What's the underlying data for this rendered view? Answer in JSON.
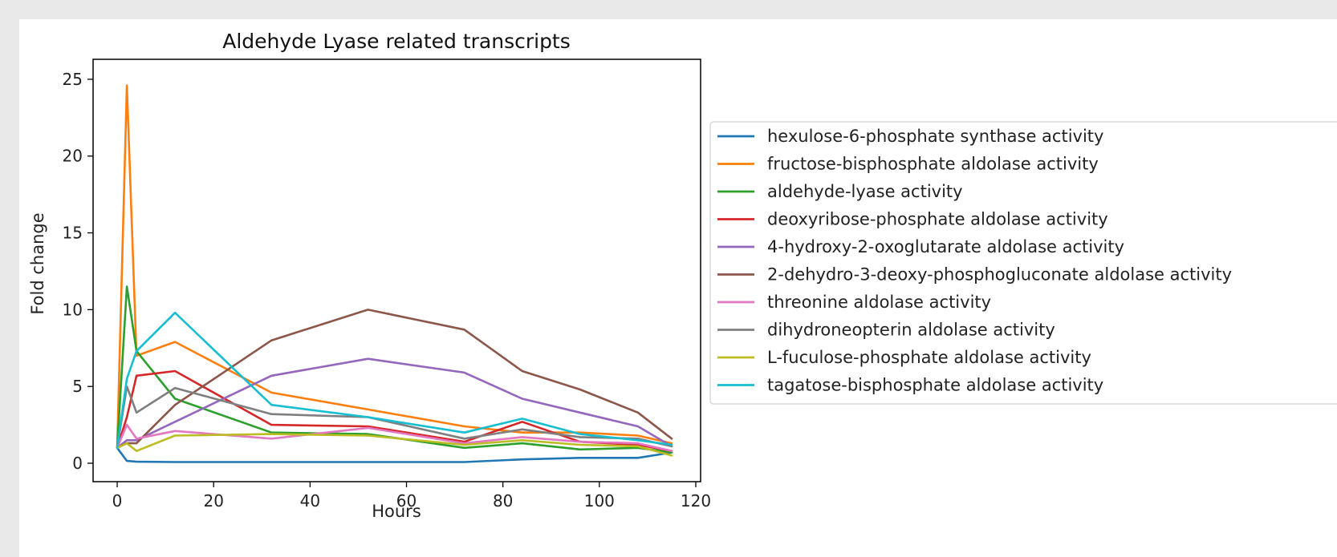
{
  "chart_data": {
    "type": "line",
    "title": "Aldehyde Lyase related transcripts",
    "xlabel": "Hours",
    "ylabel": "Fold change",
    "xlim": [
      -5,
      121
    ],
    "ylim": [
      -1.2,
      26.3
    ],
    "xticks": [
      0,
      20,
      40,
      60,
      80,
      100,
      120
    ],
    "yticks": [
      0,
      5,
      10,
      15,
      20,
      25
    ],
    "grid": false,
    "legend_position": "outside-right",
    "x": [
      0,
      2,
      4,
      12,
      32,
      52,
      72,
      84,
      96,
      108,
      115
    ],
    "series": [
      {
        "name": "hexulose-6-phosphate synthase activity",
        "color": "#1f77b4",
        "values": [
          1.0,
          0.15,
          0.1,
          0.08,
          0.08,
          0.08,
          0.08,
          0.25,
          0.35,
          0.35,
          0.7
        ]
      },
      {
        "name": "fructose-bisphosphate aldolase activity",
        "color": "#ff7f0e",
        "values": [
          1.0,
          24.6,
          7.0,
          7.9,
          4.6,
          3.5,
          2.4,
          2.0,
          2.0,
          1.8,
          1.3
        ]
      },
      {
        "name": "aldehyde-lyase activity",
        "color": "#2ca02c",
        "values": [
          1.0,
          11.5,
          7.3,
          4.2,
          2.0,
          1.9,
          1.0,
          1.3,
          0.9,
          1.0,
          0.7
        ]
      },
      {
        "name": "deoxyribose-phosphate aldolase activity",
        "color": "#d62728",
        "values": [
          1.0,
          3.0,
          5.7,
          6.0,
          2.5,
          2.4,
          1.4,
          2.7,
          1.4,
          1.2,
          0.8
        ]
      },
      {
        "name": "4-hydroxy-2-oxoglutarate aldolase activity",
        "color": "#9467bd",
        "values": [
          1.0,
          1.5,
          1.5,
          2.7,
          5.7,
          6.8,
          5.9,
          4.2,
          3.3,
          2.4,
          1.1
        ]
      },
      {
        "name": "2-dehydro-3-deoxy-phosphogluconate aldolase activity",
        "color": "#8c564b",
        "values": [
          1.0,
          1.3,
          1.3,
          3.8,
          8.0,
          10.0,
          8.7,
          6.0,
          4.8,
          3.3,
          1.6
        ]
      },
      {
        "name": "threonine aldolase activity",
        "color": "#e377c2",
        "values": [
          1.0,
          2.5,
          1.6,
          2.1,
          1.6,
          2.3,
          1.3,
          1.7,
          1.4,
          1.3,
          0.8
        ]
      },
      {
        "name": "dihydroneopterin aldolase activity",
        "color": "#7f7f7f",
        "values": [
          1.0,
          5.0,
          3.3,
          4.9,
          3.2,
          3.0,
          1.6,
          2.2,
          1.7,
          1.6,
          1.1
        ]
      },
      {
        "name": "L-fuculose-phosphate aldolase activity",
        "color": "#bcbd22",
        "values": [
          1.0,
          1.3,
          0.8,
          1.8,
          1.9,
          1.8,
          1.2,
          1.5,
          1.2,
          1.1,
          0.5
        ]
      },
      {
        "name": "tagatose-bisphosphate aldolase activity",
        "color": "#17becf",
        "values": [
          1.0,
          5.5,
          7.3,
          9.8,
          3.8,
          3.0,
          2.0,
          2.9,
          1.9,
          1.5,
          1.2
        ]
      }
    ]
  }
}
